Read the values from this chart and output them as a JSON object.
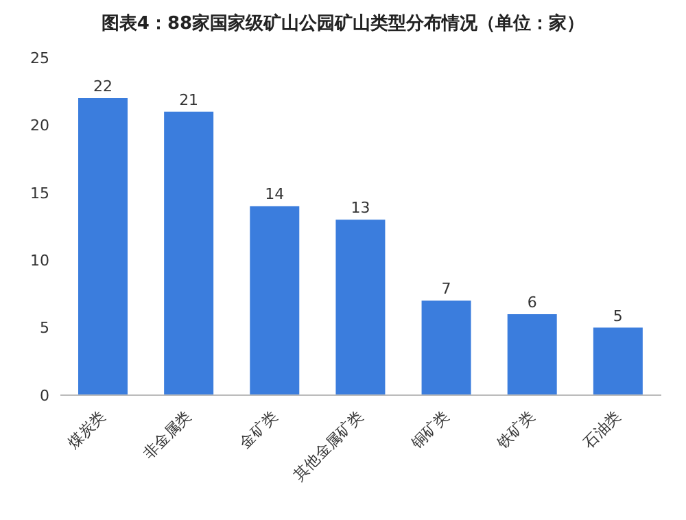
{
  "chart_data": {
    "type": "bar",
    "title": "图表4：88家国家级矿山公园矿山类型分布情况（单位：家）",
    "categories": [
      "煤炭类",
      "非金属类",
      "金矿类",
      "其他金属矿类",
      "铜矿类",
      "铁矿类",
      "石油类"
    ],
    "values": [
      22,
      21,
      14,
      13,
      7,
      6,
      5
    ],
    "color": "#3b7ddd",
    "ylim": [
      0,
      25
    ],
    "yticks": [
      0,
      5,
      10,
      15,
      20,
      25
    ],
    "data_labels": true
  }
}
